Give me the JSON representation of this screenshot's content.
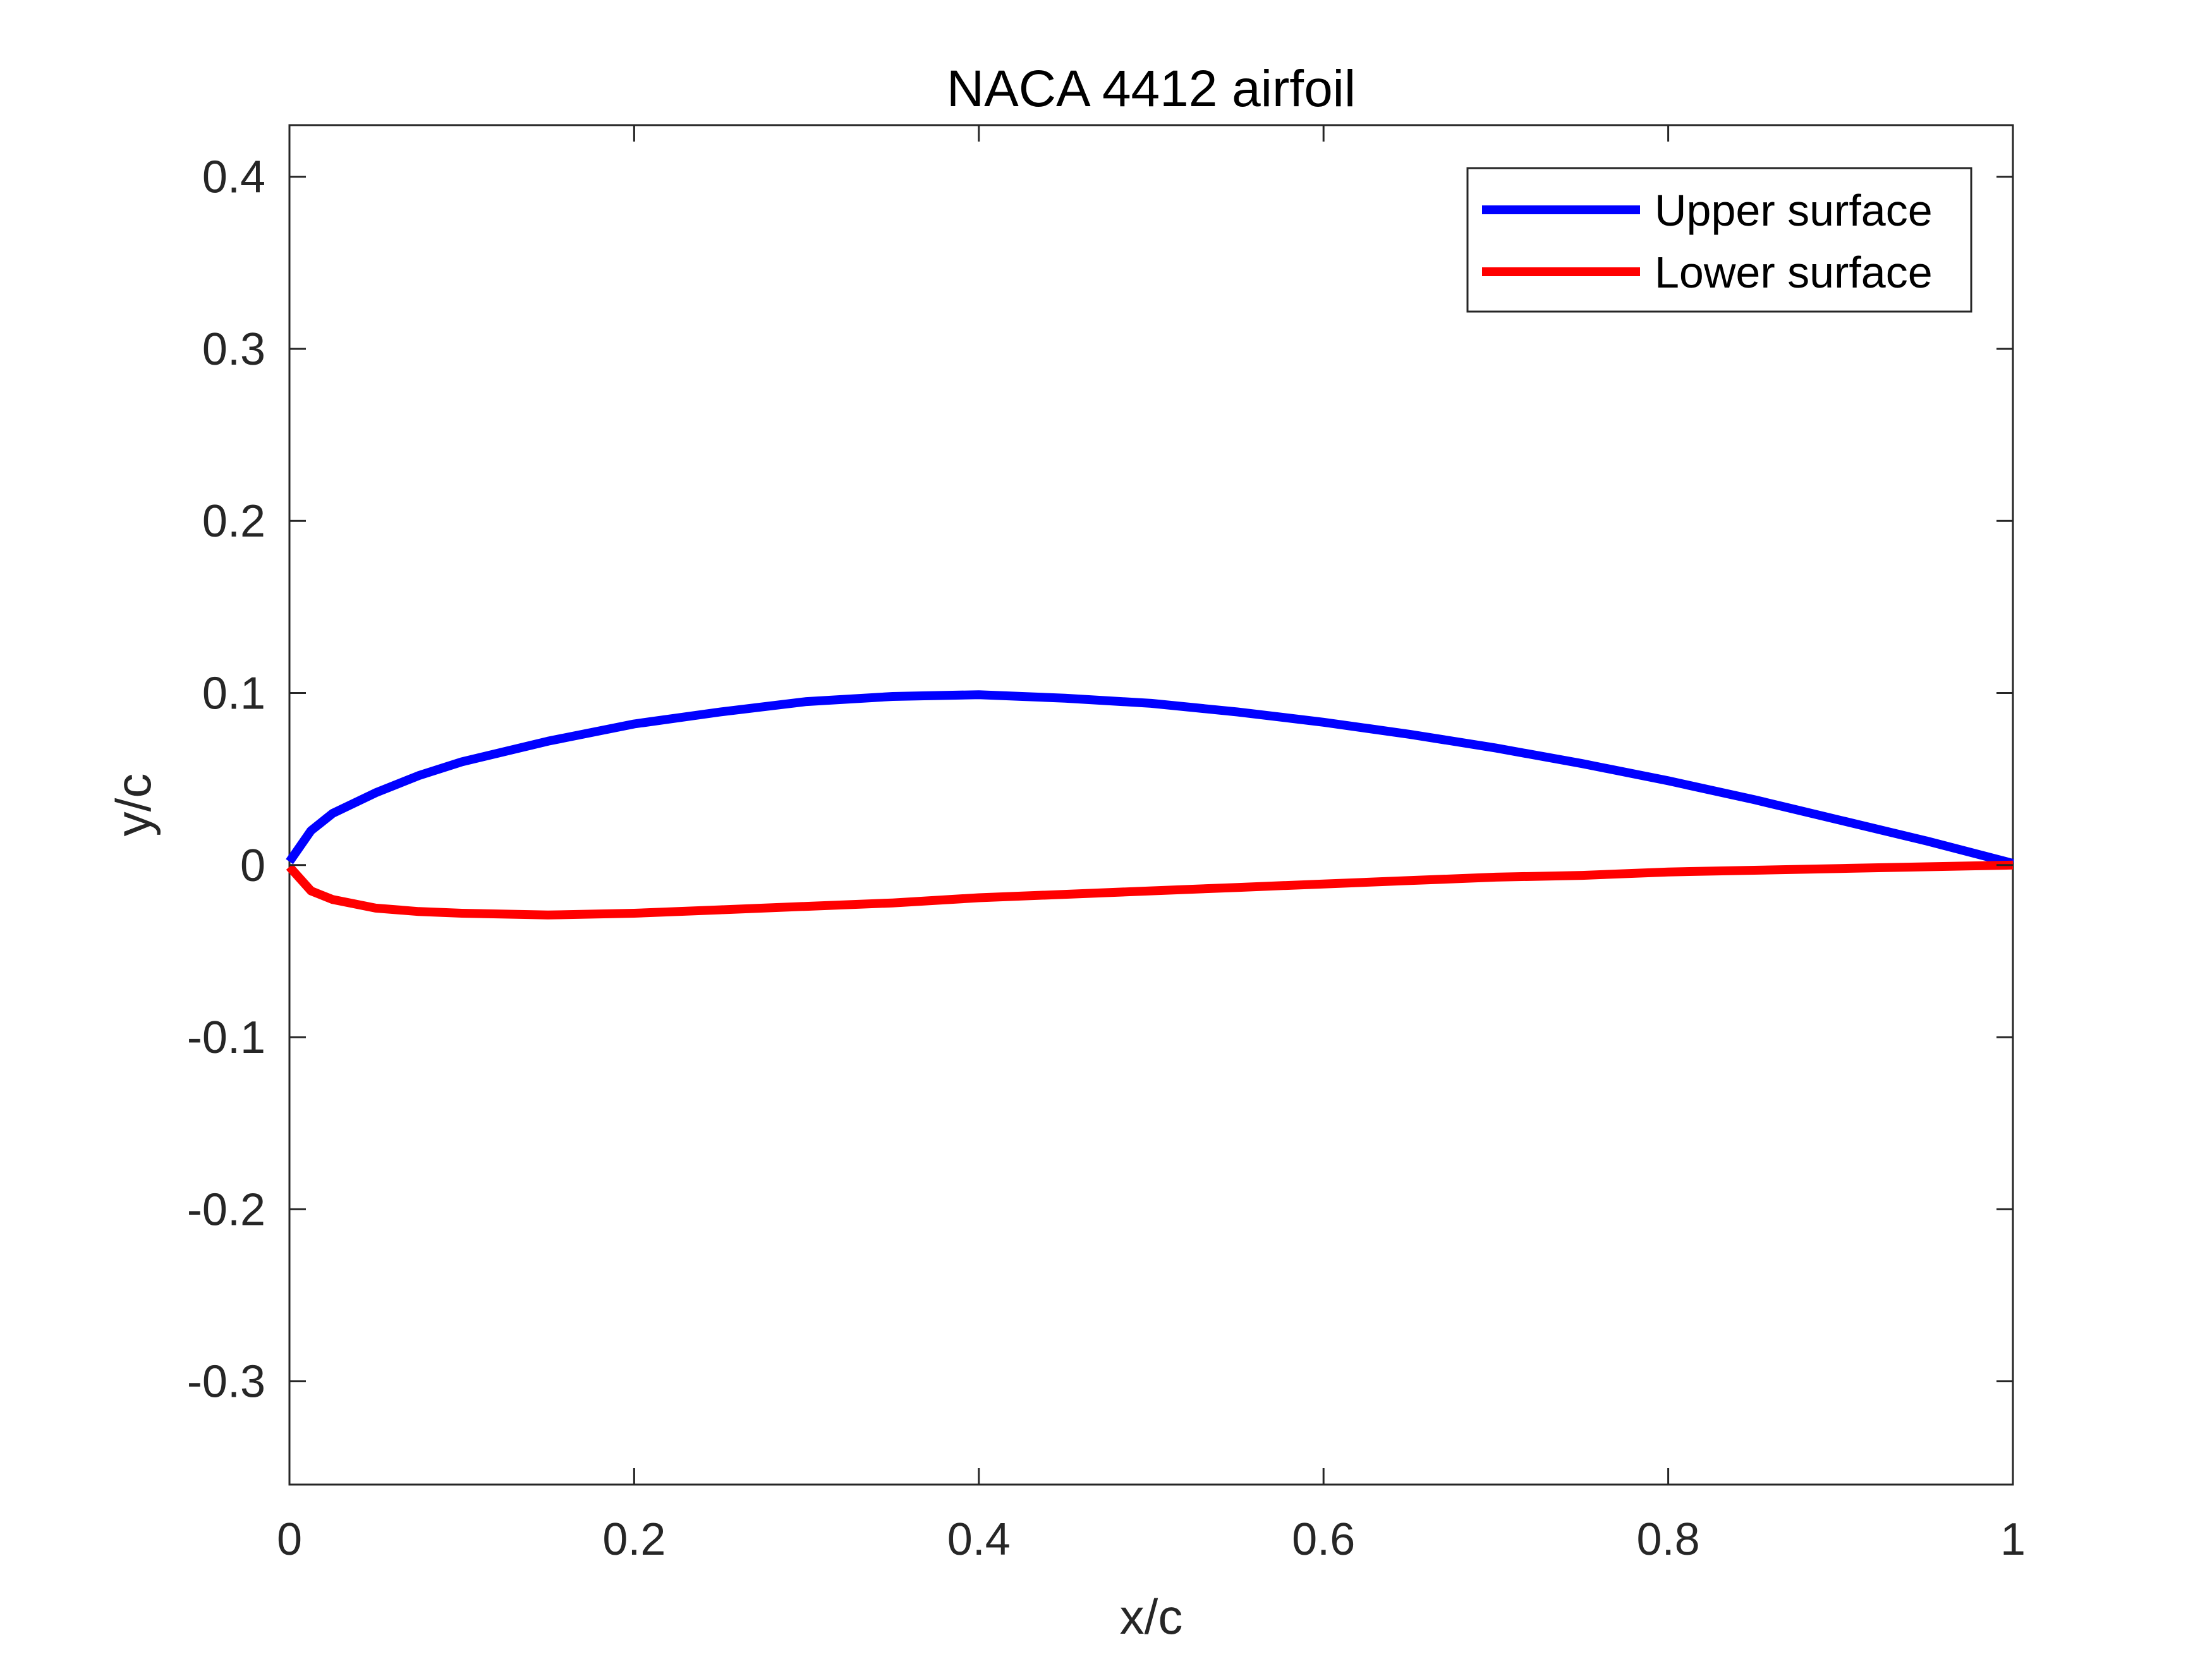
{
  "chart_data": {
    "type": "line",
    "title": "NACA 4412 airfoil",
    "xlabel": "x/c",
    "ylabel": "y/c",
    "xlim": [
      0,
      1
    ],
    "ylim": [
      -0.36,
      0.43
    ],
    "xticks": [
      0,
      0.2,
      0.4,
      0.6,
      0.8,
      1
    ],
    "xtick_labels": [
      "0",
      "0.2",
      "0.4",
      "0.6",
      "0.8",
      "1"
    ],
    "yticks": [
      -0.3,
      -0.2,
      -0.1,
      0,
      0.1,
      0.2,
      0.3,
      0.4
    ],
    "ytick_labels": [
      "-0.3",
      "-0.2",
      "-0.1",
      "0",
      "0.1",
      "0.2",
      "0.3",
      "0.4"
    ],
    "grid": false,
    "legend_position": "top-right",
    "series": [
      {
        "name": "Upper surface",
        "color": "#0000ff",
        "x": [
          0,
          0.0125,
          0.025,
          0.05,
          0.075,
          0.1,
          0.15,
          0.2,
          0.25,
          0.3,
          0.35,
          0.4,
          0.45,
          0.5,
          0.55,
          0.6,
          0.65,
          0.7,
          0.75,
          0.8,
          0.85,
          0.9,
          0.95,
          1.0
        ],
        "y": [
          0.002,
          0.02,
          0.03,
          0.042,
          0.052,
          0.06,
          0.072,
          0.082,
          0.089,
          0.095,
          0.098,
          0.099,
          0.097,
          0.094,
          0.089,
          0.083,
          0.076,
          0.068,
          0.059,
          0.049,
          0.038,
          0.026,
          0.014,
          0.001
        ]
      },
      {
        "name": "Lower surface",
        "color": "#ff0000",
        "x": [
          0,
          0.0125,
          0.025,
          0.05,
          0.075,
          0.1,
          0.15,
          0.2,
          0.25,
          0.3,
          0.35,
          0.4,
          0.45,
          0.5,
          0.55,
          0.6,
          0.65,
          0.7,
          0.75,
          0.8,
          0.85,
          0.9,
          0.95,
          1.0
        ],
        "y": [
          -0.001,
          -0.015,
          -0.02,
          -0.025,
          -0.027,
          -0.028,
          -0.029,
          -0.028,
          -0.026,
          -0.024,
          -0.022,
          -0.019,
          -0.017,
          -0.015,
          -0.013,
          -0.011,
          -0.009,
          -0.007,
          -0.006,
          -0.004,
          -0.003,
          -0.002,
          -0.001,
          0.0
        ]
      }
    ]
  }
}
